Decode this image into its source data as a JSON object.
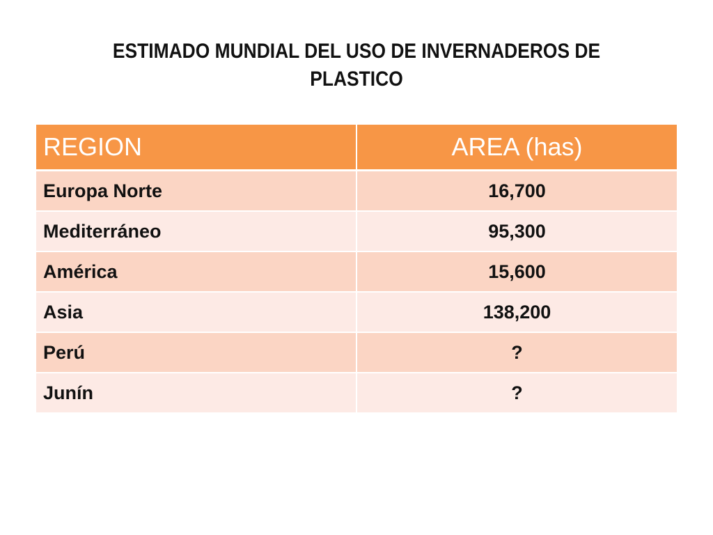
{
  "slide": {
    "title_line1": "ESTIMADO MUNDIAL DEL USO DE INVERNADEROS DE",
    "title_line2": "PLASTICO"
  },
  "table": {
    "headers": [
      "REGION",
      "AREA  (has)"
    ],
    "rows": [
      {
        "region": "Europa Norte",
        "area": "16,700"
      },
      {
        "region": "Mediterráneo",
        "area": "95,300"
      },
      {
        "region": "América",
        "area": "15,600"
      },
      {
        "region": "Asia",
        "area": "138,200"
      },
      {
        "region": "Perú",
        "area": "?"
      },
      {
        "region": "Junín",
        "area": "?"
      }
    ]
  },
  "colors": {
    "header_bg": "#f79646",
    "row_odd_bg": "#fbd5c4",
    "row_even_bg": "#fdeae5"
  }
}
